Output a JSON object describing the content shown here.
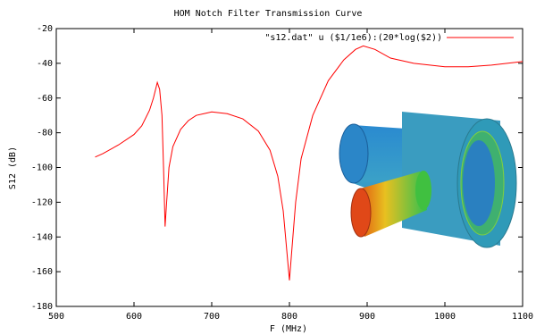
{
  "chart_data": {
    "type": "line",
    "title": "HOM Notch Filter Transmission Curve",
    "xlabel": "F (MHz)",
    "ylabel": "S12 (dB)",
    "x": [
      550,
      560,
      580,
      600,
      610,
      620,
      625,
      630,
      633,
      636,
      638,
      640,
      642,
      645,
      650,
      660,
      670,
      680,
      700,
      720,
      740,
      760,
      775,
      785,
      792,
      797,
      800,
      803,
      808,
      815,
      830,
      850,
      870,
      885,
      895,
      910,
      930,
      960,
      1000,
      1030,
      1060,
      1080,
      1100
    ],
    "series": [
      {
        "name": "\"s12.dat\" u ($1/1e6):(20*log($2))",
        "color": "#ff0000",
        "values": [
          -94,
          -92,
          -87,
          -81,
          -76,
          -67,
          -60,
          -51,
          -55,
          -70,
          -100,
          -134,
          -120,
          -100,
          -88,
          -78,
          -73,
          -70,
          -68,
          -69,
          -72,
          -79,
          -90,
          -105,
          -125,
          -150,
          -165,
          -148,
          -120,
          -95,
          -70,
          -50,
          -38,
          -32,
          -30,
          -32,
          -37,
          -40,
          -42,
          -42,
          -41,
          -40,
          -39
        ]
      }
    ],
    "xlim": [
      500,
      1100
    ],
    "ylim": [
      -180,
      -20
    ],
    "xticks": [
      500,
      600,
      700,
      800,
      900,
      1000,
      1100
    ],
    "yticks": [
      -180,
      -160,
      -140,
      -120,
      -100,
      -80,
      -60,
      -40,
      -20
    ],
    "legend": "top-right"
  }
}
